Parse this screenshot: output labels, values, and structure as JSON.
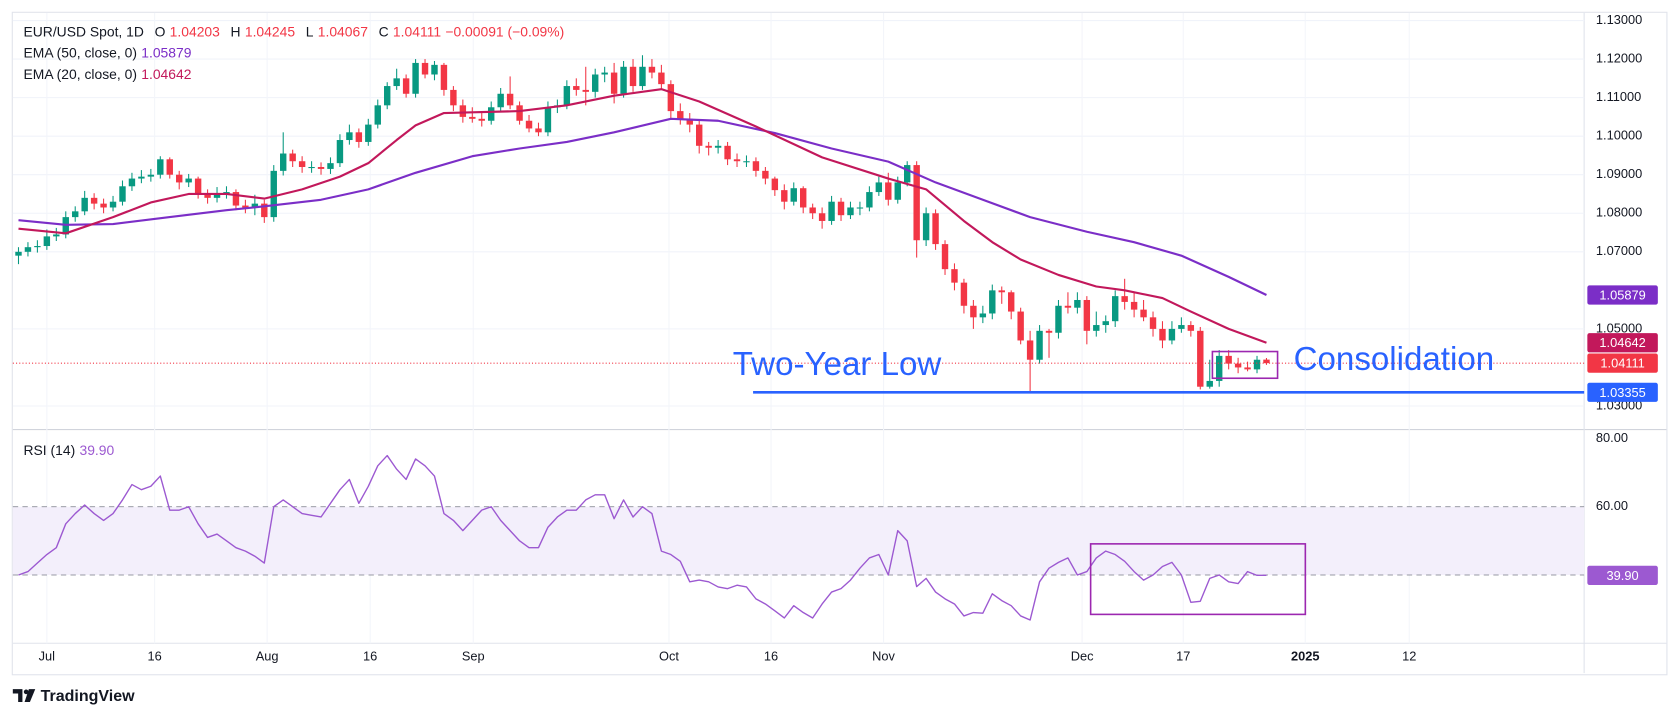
{
  "chart_data": [
    {
      "type": "candlestick",
      "title": "EUR/USD Spot, 1D",
      "ohlc_labels": [
        "O",
        "H",
        "L",
        "C"
      ],
      "change_label": "−0.00091 (−0.09%)",
      "up_color": "#089981",
      "down_color": "#f23645",
      "candles": [
        [
          1.069,
          1.0712,
          1.0668,
          1.07
        ],
        [
          1.07,
          1.0725,
          1.0688,
          1.0712
        ],
        [
          1.0712,
          1.073,
          1.0698,
          1.0715
        ],
        [
          1.0715,
          1.0758,
          1.0705,
          1.074
        ],
        [
          1.074,
          1.0762,
          1.0728,
          1.0745
        ],
        [
          1.0745,
          1.0805,
          1.0735,
          1.079
        ],
        [
          1.079,
          1.0818,
          1.0778,
          1.0805
        ],
        [
          1.0805,
          1.0858,
          1.0795,
          1.084
        ],
        [
          1.084,
          1.0852,
          1.081,
          1.0825
        ],
        [
          1.0825,
          1.0838,
          1.08,
          1.0815
        ],
        [
          1.0815,
          1.0845,
          1.0805,
          1.083
        ],
        [
          1.083,
          1.0885,
          1.082,
          1.087
        ],
        [
          1.087,
          1.0905,
          1.0858,
          1.089
        ],
        [
          1.089,
          1.0912,
          1.0878,
          1.0895
        ],
        [
          1.0895,
          1.0915,
          1.0882,
          1.09
        ],
        [
          1.09,
          1.0948,
          1.089,
          1.094
        ],
        [
          1.094,
          1.0945,
          1.089,
          1.09
        ],
        [
          1.09,
          1.091,
          1.0862,
          1.088
        ],
        [
          1.088,
          1.0902,
          1.0868,
          1.089
        ],
        [
          1.089,
          1.0895,
          1.0838,
          1.085
        ],
        [
          1.085,
          1.0862,
          1.0825,
          1.084
        ],
        [
          1.084,
          1.0868,
          1.0828,
          1.085
        ],
        [
          1.085,
          1.087,
          1.0838,
          1.0855
        ],
        [
          1.0855,
          1.0862,
          1.0808,
          1.082
        ],
        [
          1.082,
          1.0835,
          1.08,
          1.0815
        ],
        [
          1.0815,
          1.0848,
          1.0795,
          1.0825
        ],
        [
          1.0825,
          1.0835,
          1.0775,
          1.079
        ],
        [
          1.079,
          1.0925,
          1.0778,
          1.091
        ],
        [
          1.091,
          1.101,
          1.0898,
          1.0955
        ],
        [
          1.0955,
          1.0965,
          1.092,
          1.0935
        ],
        [
          1.0935,
          1.0948,
          1.0905,
          1.092
        ],
        [
          1.092,
          1.0935,
          1.0905,
          1.092
        ],
        [
          1.092,
          1.0932,
          1.09,
          1.0915
        ],
        [
          1.0915,
          1.0945,
          1.0902,
          1.093
        ],
        [
          1.093,
          1.1005,
          1.092,
          1.099
        ],
        [
          1.099,
          1.103,
          1.0978,
          1.101
        ],
        [
          1.101,
          1.102,
          1.097,
          1.0985
        ],
        [
          1.0985,
          1.1045,
          1.0975,
          1.103
        ],
        [
          1.103,
          1.1095,
          1.102,
          1.108
        ],
        [
          1.108,
          1.114,
          1.107,
          1.113
        ],
        [
          1.113,
          1.1175,
          1.112,
          1.115
        ],
        [
          1.115,
          1.116,
          1.11,
          1.111
        ],
        [
          1.111,
          1.12,
          1.11,
          1.119
        ],
        [
          1.119,
          1.12,
          1.115,
          1.116
        ],
        [
          1.116,
          1.1195,
          1.1145,
          1.1185
        ],
        [
          1.1185,
          1.119,
          1.1105,
          1.112
        ],
        [
          1.112,
          1.113,
          1.1065,
          1.108
        ],
        [
          1.108,
          1.1095,
          1.1035,
          1.105
        ],
        [
          1.105,
          1.1075,
          1.1035,
          1.1045
        ],
        [
          1.1045,
          1.106,
          1.1025,
          1.104
        ],
        [
          1.104,
          1.109,
          1.103,
          1.1075
        ],
        [
          1.1075,
          1.1125,
          1.1065,
          1.111
        ],
        [
          1.111,
          1.1155,
          1.107,
          1.108
        ],
        [
          1.108,
          1.109,
          1.103,
          1.104
        ],
        [
          1.104,
          1.1055,
          1.101,
          1.102
        ],
        [
          1.102,
          1.1035,
          1.1,
          1.101
        ],
        [
          1.101,
          1.109,
          1.1,
          1.1075
        ],
        [
          1.1075,
          1.1095,
          1.106,
          1.108
        ],
        [
          1.108,
          1.1145,
          1.107,
          1.113
        ],
        [
          1.113,
          1.115,
          1.1105,
          1.112
        ],
        [
          1.112,
          1.118,
          1.108,
          1.1115
        ],
        [
          1.1115,
          1.1175,
          1.11,
          1.116
        ],
        [
          1.116,
          1.118,
          1.114,
          1.1165
        ],
        [
          1.1165,
          1.119,
          1.1085,
          1.111
        ],
        [
          1.111,
          1.1195,
          1.11,
          1.118
        ],
        [
          1.118,
          1.12,
          1.1115,
          1.113
        ],
        [
          1.113,
          1.121,
          1.112,
          1.118
        ],
        [
          1.118,
          1.12,
          1.115,
          1.1165
        ],
        [
          1.1165,
          1.1185,
          1.112,
          1.1135
        ],
        [
          1.1135,
          1.1145,
          1.1045,
          1.1065
        ],
        [
          1.1065,
          1.1085,
          1.103,
          1.1045
        ],
        [
          1.1045,
          1.106,
          1.101,
          1.103
        ],
        [
          1.103,
          1.104,
          1.0955,
          1.0975
        ],
        [
          1.0975,
          1.0985,
          1.095,
          1.097
        ],
        [
          1.097,
          1.099,
          1.0955,
          1.0975
        ],
        [
          1.0975,
          1.0985,
          1.0925,
          1.094
        ],
        [
          1.094,
          1.0955,
          1.092,
          1.0935
        ],
        [
          1.0935,
          1.095,
          1.092,
          1.0935
        ],
        [
          1.0935,
          1.0945,
          1.0895,
          1.091
        ],
        [
          1.091,
          1.092,
          1.0875,
          1.089
        ],
        [
          1.089,
          1.0895,
          1.0845,
          1.086
        ],
        [
          1.086,
          1.0875,
          1.081,
          1.083
        ],
        [
          1.083,
          1.088,
          1.082,
          1.0865
        ],
        [
          1.0865,
          1.087,
          1.08,
          1.0815
        ],
        [
          1.0815,
          1.0825,
          1.0785,
          1.08
        ],
        [
          1.08,
          1.0815,
          1.076,
          1.078
        ],
        [
          1.078,
          1.0845,
          1.077,
          1.083
        ],
        [
          1.083,
          1.084,
          1.078,
          1.0795
        ],
        [
          1.0795,
          1.083,
          1.0785,
          1.0815
        ],
        [
          1.0815,
          1.083,
          1.0795,
          1.0815
        ],
        [
          1.0815,
          1.087,
          1.0805,
          1.0855
        ],
        [
          1.0855,
          1.0895,
          1.0845,
          1.088
        ],
        [
          1.088,
          1.0905,
          1.082,
          1.0835
        ],
        [
          1.0835,
          1.0895,
          1.0825,
          1.088
        ],
        [
          1.088,
          1.0935,
          1.087,
          1.0925
        ],
        [
          1.0925,
          1.0935,
          1.0685,
          1.073
        ],
        [
          1.073,
          1.0815,
          1.0715,
          1.08
        ],
        [
          1.08,
          1.081,
          1.0705,
          1.072
        ],
        [
          1.072,
          1.073,
          1.064,
          1.0655
        ],
        [
          1.0655,
          1.067,
          1.06,
          1.062
        ],
        [
          1.062,
          1.063,
          1.054,
          1.056
        ],
        [
          1.056,
          1.0575,
          1.05,
          1.053
        ],
        [
          1.053,
          1.056,
          1.0515,
          1.054
        ],
        [
          1.054,
          1.0615,
          1.0525,
          1.06
        ],
        [
          1.06,
          1.061,
          1.0565,
          1.0595
        ],
        [
          1.0595,
          1.06,
          1.0525,
          1.0545
        ],
        [
          1.0545,
          1.0555,
          1.046,
          1.047
        ],
        [
          1.047,
          1.0495,
          1.0335,
          1.042
        ],
        [
          1.042,
          1.051,
          1.041,
          1.0495
        ],
        [
          1.0495,
          1.05,
          1.0425,
          1.049
        ],
        [
          1.049,
          1.0575,
          1.0475,
          1.056
        ],
        [
          1.056,
          1.0595,
          1.054,
          1.0555
        ],
        [
          1.0555,
          1.0595,
          1.054,
          1.0575
        ],
        [
          1.0575,
          1.0585,
          1.046,
          1.0495
        ],
        [
          1.0495,
          1.0545,
          1.048,
          1.051
        ],
        [
          1.051,
          1.0535,
          1.049,
          1.052
        ],
        [
          1.052,
          1.06,
          1.0505,
          1.0585
        ],
        [
          1.0585,
          1.063,
          1.055,
          1.057
        ],
        [
          1.057,
          1.0595,
          1.053,
          1.055
        ],
        [
          1.055,
          1.0575,
          1.052,
          1.053
        ],
        [
          1.053,
          1.0545,
          1.048,
          1.05
        ],
        [
          1.05,
          1.052,
          1.045,
          1.047
        ],
        [
          1.047,
          1.052,
          1.046,
          1.05
        ],
        [
          1.05,
          1.053,
          1.049,
          1.051
        ],
        [
          1.051,
          1.052,
          1.048,
          1.0495
        ],
        [
          1.0495,
          1.0505,
          1.0343,
          1.035
        ],
        [
          1.035,
          1.042,
          1.0345,
          1.0365
        ],
        [
          1.0365,
          1.0445,
          1.035,
          1.043
        ],
        [
          1.043,
          1.0445,
          1.0395,
          1.041
        ],
        [
          1.041,
          1.0425,
          1.0385,
          1.04
        ],
        [
          1.04,
          1.0415,
          1.039,
          1.0395
        ],
        [
          1.0395,
          1.043,
          1.0385,
          1.042
        ],
        [
          1.04203,
          1.04245,
          1.04067,
          1.04111
        ]
      ],
      "series": [
        {
          "name": "EMA (50, close, 0)",
          "color": "#7b2ec7",
          "x": [
            0,
            5,
            10,
            16,
            22,
            26,
            32,
            37,
            42,
            48,
            53,
            58,
            63,
            69,
            74,
            80,
            86,
            92,
            97,
            102,
            107,
            113,
            118,
            123,
            128,
            132
          ],
          "values": [
            1.0782,
            1.077,
            1.0772,
            1.079,
            1.0808,
            1.0818,
            1.0835,
            1.0862,
            1.0905,
            1.0948,
            1.0968,
            1.0985,
            1.101,
            1.1045,
            1.104,
            1.1008,
            1.0968,
            1.0934,
            1.088,
            1.0835,
            1.079,
            1.0752,
            1.0725,
            1.069,
            1.0635,
            1.05879
          ]
        },
        {
          "name": "EMA (20, close, 0)",
          "color": "#c2185b",
          "x": [
            0,
            5,
            10,
            14,
            18,
            22,
            26,
            30,
            34,
            37,
            40,
            42,
            45,
            48,
            53,
            58,
            63,
            68,
            72,
            78,
            85,
            92,
            96,
            100,
            103,
            106,
            110,
            114,
            117,
            121,
            124,
            128,
            132
          ],
          "values": [
            1.076,
            1.0748,
            1.079,
            1.0828,
            1.085,
            1.085,
            1.0838,
            1.0862,
            1.0895,
            1.093,
            1.099,
            1.1028,
            1.106,
            1.1062,
            1.1065,
            1.108,
            1.1105,
            1.1122,
            1.109,
            1.1025,
            1.0945,
            1.089,
            1.0862,
            1.078,
            1.0725,
            1.068,
            1.064,
            1.061,
            1.06,
            1.058,
            1.0545,
            1.05,
            1.04642
          ]
        }
      ],
      "hlines": [
        {
          "value": 1.03355,
          "color": "#2962ff"
        }
      ],
      "annotations": [
        "Two-Year Low",
        "Consolidation"
      ],
      "annotation_color": "#2962ff",
      "xlim": [
        -0.6,
        165.6
      ],
      "xticks": [
        {
          "value": 3,
          "label": "Jul"
        },
        {
          "value": 14.4,
          "label": "16"
        },
        {
          "value": 26.3,
          "label": "Aug"
        },
        {
          "value": 37.2,
          "label": "16"
        },
        {
          "value": 48.1,
          "label": "Sep"
        },
        {
          "value": 68.8,
          "label": "Oct"
        },
        {
          "value": 79.6,
          "label": "16"
        },
        {
          "value": 91.5,
          "label": "Nov"
        },
        {
          "value": 112.5,
          "label": "Dec"
        },
        {
          "value": 123.2,
          "label": "17"
        },
        {
          "value": 136.1,
          "label": "2025"
        },
        {
          "value": 147.1,
          "label": "12"
        }
      ],
      "ylim": [
        1.025,
        1.132
      ],
      "yticks": [
        {
          "value": 1.03,
          "label": "1.03000"
        },
        {
          "value": 1.05,
          "label": "1.05000"
        },
        {
          "value": 1.07,
          "label": "1.07000"
        },
        {
          "value": 1.08,
          "label": "1.08000"
        },
        {
          "value": 1.09,
          "label": "1.09000"
        },
        {
          "value": 1.1,
          "label": "1.10000"
        },
        {
          "value": 1.11,
          "label": "1.11000"
        },
        {
          "value": 1.12,
          "label": "1.12000"
        },
        {
          "value": 1.13,
          "label": "1.13000"
        }
      ],
      "grid": true
    },
    {
      "type": "line",
      "series": [
        {
          "name": "RSI (14)",
          "color": "#9c59d1",
          "values": [
            40,
            41,
            43.5,
            46,
            48,
            55,
            58,
            60.5,
            58,
            56,
            58,
            62,
            66.5,
            65,
            66,
            69,
            59,
            59,
            60,
            55,
            51,
            52,
            50,
            48,
            47,
            45.5,
            43.5,
            60,
            62,
            60,
            58,
            57.5,
            57,
            61,
            65,
            68,
            61,
            66,
            72,
            75,
            71,
            68,
            74,
            72,
            69,
            58,
            56,
            53,
            56,
            59,
            60,
            56,
            53,
            50,
            48,
            48,
            54,
            57,
            59,
            59,
            62,
            63.5,
            63.5,
            56.5,
            62,
            57,
            60,
            58,
            47,
            46,
            44,
            38,
            38.5,
            38,
            36.5,
            36,
            37,
            36.5,
            33,
            31.5,
            29.5,
            27.4,
            31,
            29,
            27.4,
            31.5,
            35,
            36,
            38.5,
            42,
            45,
            46,
            40,
            53,
            50,
            36.6,
            39,
            35,
            33,
            31.5,
            28,
            29,
            28.8,
            34.5,
            32.5,
            31,
            28,
            26.8,
            38,
            42,
            43.7,
            45,
            40,
            41,
            45,
            47,
            46,
            44,
            41,
            38.5,
            40,
            42.5,
            43.7,
            40,
            32,
            32.3,
            39,
            40,
            38,
            37.5,
            41,
            39.9,
            39.9
          ]
        }
      ],
      "current_label": "39.90",
      "band": [
        40,
        60
      ],
      "band_color": "#f3effb",
      "xlim": [
        -0.6,
        165.6
      ],
      "ylim": [
        20,
        82
      ],
      "yticks": [
        {
          "value": 60,
          "label": "60.00"
        },
        {
          "value": 80,
          "label": "80.00"
        }
      ]
    }
  ],
  "brand": "TradingView"
}
